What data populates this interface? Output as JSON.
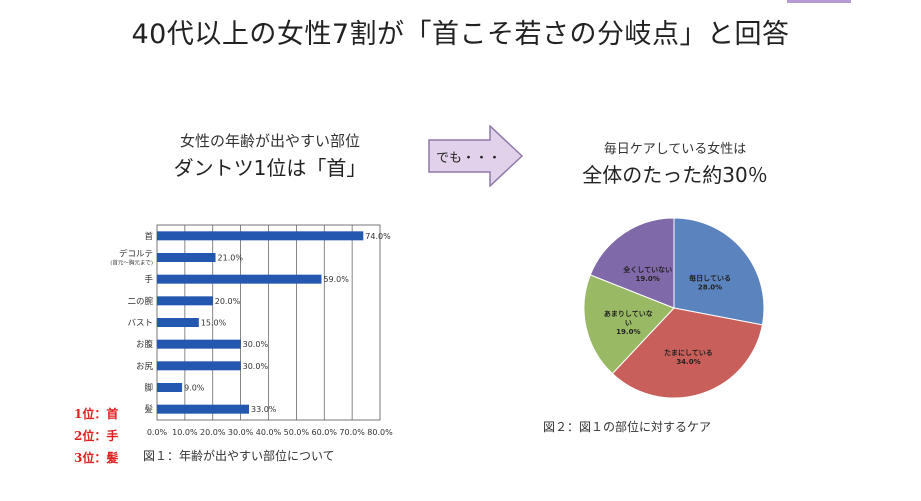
{
  "header": {
    "title": "40代以上の女性7割が「首こそ若さの分岐点」と回答"
  },
  "left_caption": {
    "line1": "女性の年齢が出やすい部位",
    "line2": "ダントツ1位は「首」"
  },
  "arrow": {
    "label": "でも・・・"
  },
  "right_caption": {
    "line1": "毎日ケアしている女性は",
    "line2": "全体のたった約30％"
  },
  "ranking": [
    "1位：首",
    "2位：手",
    "3位：髪"
  ],
  "figure1_caption": "図１：年齢が出やすい部位について",
  "figure2_caption": "図２：図１の部位に対するケア",
  "colors": {
    "bar": "#2457b0",
    "pie": [
      "#5b83bd",
      "#c85f5a",
      "#9ab965",
      "#8069a9"
    ],
    "rank_text": "#e02020",
    "arrow_fill": "#e1d1ea",
    "arrow_stroke": "#8f7aa8"
  },
  "chart_data": [
    {
      "type": "bar",
      "orientation": "horizontal",
      "categories": [
        "首",
        "デコルテ",
        "手",
        "二の腕",
        "バスト",
        "お腹",
        "お尻",
        "脚",
        "髪"
      ],
      "category_notes": [
        "",
        "(首元～胸元まで)",
        "",
        "",
        "",
        "",
        "",
        "",
        ""
      ],
      "values": [
        74.0,
        21.0,
        59.0,
        20.0,
        15.0,
        30.0,
        30.0,
        9.0,
        33.0
      ],
      "value_labels": [
        "74.0%",
        "21.0%",
        "59.0%",
        "20.0%",
        "15.0%",
        "30.0%",
        "30.0%",
        "9.0%",
        "33.0%"
      ],
      "xlim": [
        0,
        80
      ],
      "xticks": [
        "0.0%",
        "10.0%",
        "20.0%",
        "30.0%",
        "40.0%",
        "50.0%",
        "60.0%",
        "70.0%",
        "80.0%"
      ],
      "grid": true
    },
    {
      "type": "pie",
      "labels": [
        "毎日している",
        "たまにしている",
        "あまりしていない",
        "全くしていない"
      ],
      "values": [
        28.0,
        34.0,
        19.0,
        19.0
      ],
      "value_labels": [
        "28.0%",
        "34.0%",
        "19.0%",
        "19.0%"
      ],
      "start": "12 o'clock",
      "direction": "clockwise"
    }
  ]
}
